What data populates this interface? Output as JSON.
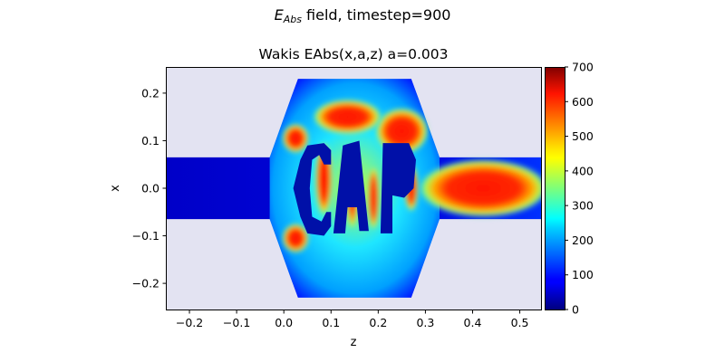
{
  "figure": {
    "suptitle_main": "E",
    "suptitle_sub": "Abs",
    "suptitle_rest": " field, timestep=900"
  },
  "chart_data": {
    "type": "heatmap",
    "title": "Wakis EAbs(x,a,z) a=0.003",
    "xlabel": "z",
    "ylabel": "x",
    "xlim": [
      -0.25,
      0.545
    ],
    "ylim": [
      -0.255,
      0.255
    ],
    "xticks": [
      "−0.2",
      "−0.1",
      "0.0",
      "0.1",
      "0.2",
      "0.3",
      "0.4",
      "0.5"
    ],
    "xtick_values": [
      -0.2,
      -0.1,
      0.0,
      0.1,
      0.2,
      0.3,
      0.4,
      0.5
    ],
    "yticks": [
      "0.2",
      "0.1",
      "0.0",
      "−0.1",
      "−0.2"
    ],
    "ytick_values": [
      0.2,
      0.1,
      0.0,
      -0.1,
      -0.2
    ],
    "colormap": "jet",
    "colorbar": {
      "range": [
        0,
        700
      ],
      "ticks": [
        "700",
        "600",
        "500",
        "400",
        "300",
        "200",
        "100",
        "0"
      ],
      "tick_values": [
        700,
        600,
        500,
        400,
        300,
        200,
        100,
        0
      ]
    },
    "background_color": "#e3e3f2",
    "field_regions": {
      "beam_pipe_half_width": 0.065,
      "cavity_z_range": [
        0.02,
        0.28
      ],
      "cavity_x_half_width": 0.23,
      "beam_pipe_z_range": [
        -0.25,
        0.545
      ]
    },
    "hot_regions": [
      {
        "name": "wake tail",
        "z": [
          0.3,
          0.545
        ],
        "x": [
          -0.05,
          0.05
        ],
        "value": 700
      },
      {
        "name": "upper right lobe",
        "z": [
          0.2,
          0.3
        ],
        "x": [
          0.08,
          0.16
        ],
        "value": 700
      },
      {
        "name": "upper left lobe",
        "z": [
          0.0,
          0.05
        ],
        "x": [
          0.08,
          0.13
        ],
        "value": 650
      },
      {
        "name": "lower left lobe",
        "z": [
          0.0,
          0.05
        ],
        "x": [
          -0.13,
          -0.08
        ],
        "value": 650
      },
      {
        "name": "upper center lobe",
        "z": [
          0.07,
          0.2
        ],
        "x": [
          0.12,
          0.18
        ],
        "value": 600
      }
    ],
    "masked_text": "CAP"
  }
}
